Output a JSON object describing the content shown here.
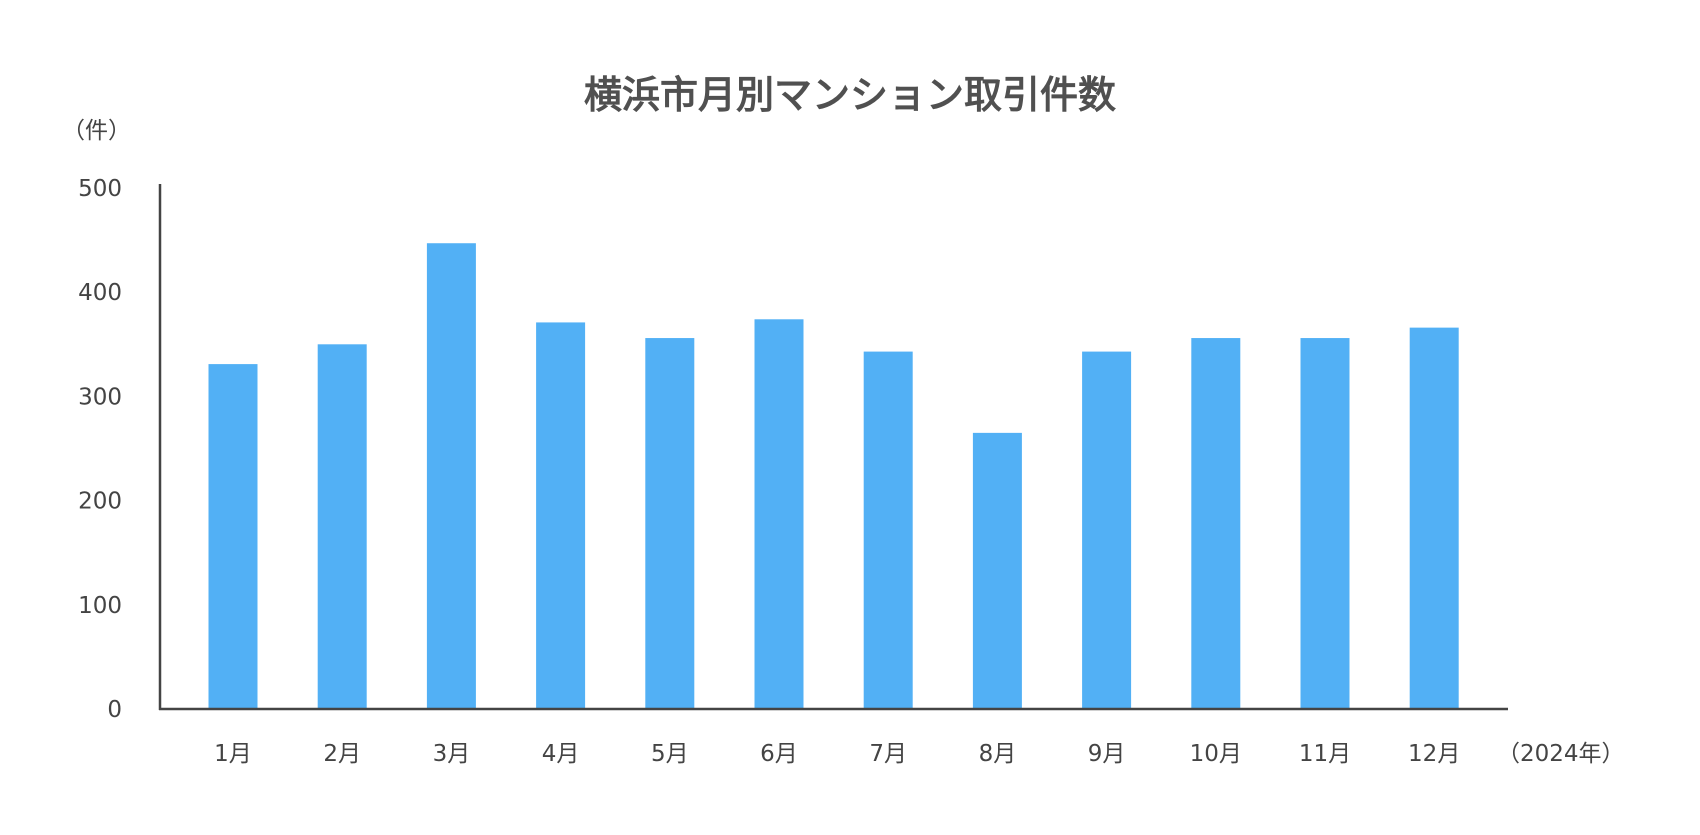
{
  "chart_data": {
    "type": "bar",
    "title": "横浜市月別マンション取引件数",
    "y_unit_label": "（件）",
    "x_unit_label": "（2024年）",
    "categories": [
      "1月",
      "2月",
      "3月",
      "4月",
      "5月",
      "6月",
      "7月",
      "8月",
      "9月",
      "10月",
      "11月",
      "12月"
    ],
    "values": [
      331,
      350,
      447,
      371,
      356,
      374,
      343,
      265,
      343,
      356,
      356,
      366
    ],
    "ylim": [
      0,
      500
    ],
    "yticks": [
      0,
      100,
      200,
      300,
      400,
      500
    ],
    "grid": false,
    "bar_color": "#52b0f5",
    "axis_color": "#444444"
  }
}
